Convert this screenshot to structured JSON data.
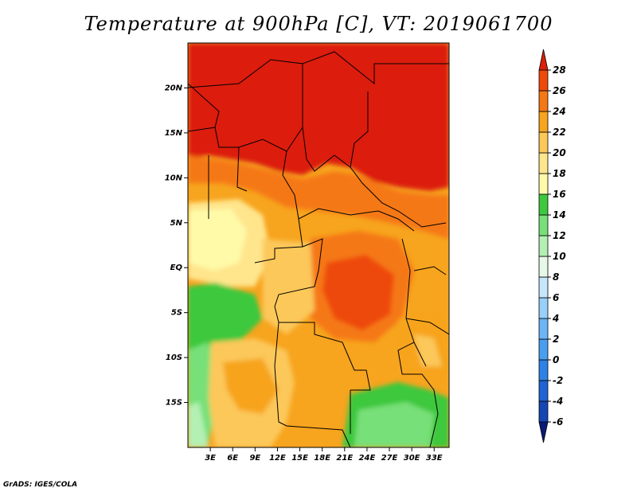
{
  "title": "Temperature at 900hPa [C], VT: 2019061700",
  "credit": "GrADS: IGES/COLA",
  "map": {
    "lon_range": [
      0,
      35
    ],
    "lat_range": [
      -20,
      25
    ],
    "lat_ticks": [
      {
        "value": 20,
        "label": "20N"
      },
      {
        "value": 15,
        "label": "15N"
      },
      {
        "value": 10,
        "label": "10N"
      },
      {
        "value": 5,
        "label": "5N"
      },
      {
        "value": 0,
        "label": "EQ"
      },
      {
        "value": -5,
        "label": "5S"
      },
      {
        "value": -10,
        "label": "10S"
      },
      {
        "value": -15,
        "label": "15S"
      }
    ],
    "lon_ticks": [
      {
        "value": 3,
        "label": "3E"
      },
      {
        "value": 6,
        "label": "6E"
      },
      {
        "value": 9,
        "label": "9E"
      },
      {
        "value": 12,
        "label": "12E"
      },
      {
        "value": 15,
        "label": "15E"
      },
      {
        "value": 18,
        "label": "18E"
      },
      {
        "value": 21,
        "label": "21E"
      },
      {
        "value": 24,
        "label": "24E"
      },
      {
        "value": 27,
        "label": "27E"
      },
      {
        "value": 30,
        "label": "30E"
      },
      {
        "value": 33,
        "label": "33E"
      }
    ]
  },
  "colorbar": {
    "labels": [
      "28",
      "26",
      "24",
      "22",
      "20",
      "18",
      "16",
      "14",
      "12",
      "10",
      "8",
      "6",
      "4",
      "2",
      "0",
      "-2",
      "-4",
      "-6"
    ],
    "colors": [
      "#0a1a78",
      "#1446b4",
      "#1e64d2",
      "#2e82e6",
      "#4a9ef0",
      "#6cb6f6",
      "#98d0fa",
      "#c6e6fc",
      "#e6f8e6",
      "#b4f0b4",
      "#78e078",
      "#3ec83e",
      "#fffaa8",
      "#ffe58c",
      "#fcc85a",
      "#f7a41e",
      "#f57814",
      "#ee4a0a",
      "#dc1e0a"
    ]
  }
}
